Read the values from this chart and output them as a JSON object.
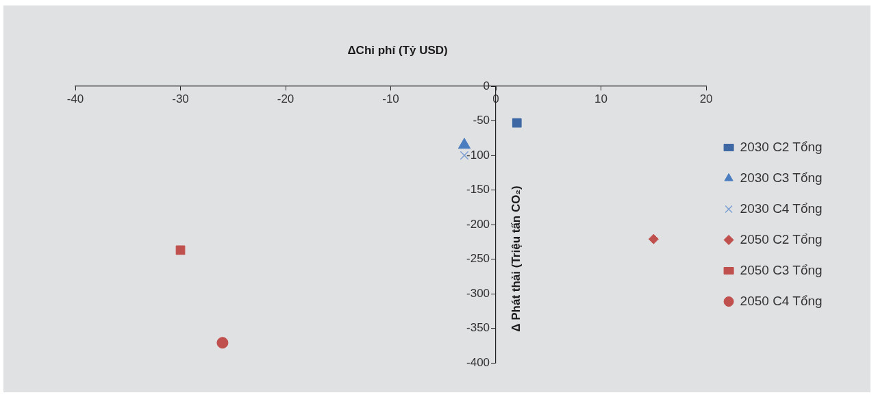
{
  "chart_data": {
    "type": "scatter",
    "xlabel": "ΔChi phí (Tỷ USD)",
    "ylabel": "Δ Phát thải (Triệu tấn CO₂)",
    "xlim": [
      -40,
      20
    ],
    "xticks": [
      -40,
      -30,
      -20,
      -10,
      0,
      10,
      20
    ],
    "ylim": [
      -400,
      0
    ],
    "yticks": [
      -400,
      -350,
      -300,
      -250,
      -200,
      -150,
      -100,
      -50,
      0
    ],
    "grid": false,
    "legend": "right",
    "series": [
      {
        "name": "2030 C2 Tổng",
        "color": "#3e68a3",
        "marker": "square",
        "x": [
          2
        ],
        "values": [
          -53
        ]
      },
      {
        "name": "2030 C3 Tổng",
        "color": "#4a7dbf",
        "marker": "triangle",
        "x": [
          -3
        ],
        "values": [
          -85
        ]
      },
      {
        "name": "2030 C4 Tổng",
        "color": "#7d9fd3",
        "marker": "cross",
        "x": [
          -3
        ],
        "values": [
          -100
        ]
      },
      {
        "name": "2050 C2 Tổng",
        "color": "#c0504d",
        "marker": "diamond",
        "x": [
          15
        ],
        "values": [
          -221
        ]
      },
      {
        "name": "2050 C3 Tổng",
        "color": "#c0504d",
        "marker": "square",
        "x": [
          -30
        ],
        "values": [
          -237
        ]
      },
      {
        "name": "2050 C4 Tổng",
        "color": "#c0504d",
        "marker": "circle",
        "x": [
          -26
        ],
        "values": [
          -371
        ]
      }
    ]
  }
}
